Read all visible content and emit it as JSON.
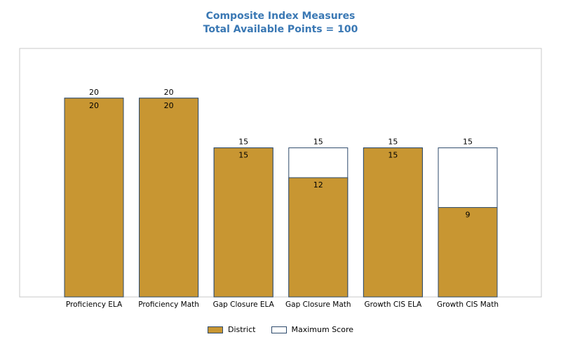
{
  "chart_data": {
    "type": "bar",
    "title": "Composite Index Measures",
    "subtitle": "Total Available Points = 100",
    "xlabel": "",
    "ylabel": "",
    "ylim": [
      0,
      25
    ],
    "grid": false,
    "legend_position": "bottom",
    "categories": [
      "Proficiency ELA",
      "Proficiency Math",
      "Gap Closure ELA",
      "Gap Closure Math",
      "Growth CIS ELA",
      "Growth CIS Math"
    ],
    "series": [
      {
        "name": "District",
        "values": [
          20,
          20,
          15,
          12,
          15,
          9
        ],
        "color": "#c89632"
      },
      {
        "name": "Maximum Score",
        "values": [
          20,
          20,
          15,
          15,
          15,
          15
        ],
        "color": "#ffffff"
      }
    ]
  },
  "colors": {
    "title": "#3a78b4",
    "bar_border": "#2d4a6b",
    "plot_border": "#c8c8c8"
  }
}
